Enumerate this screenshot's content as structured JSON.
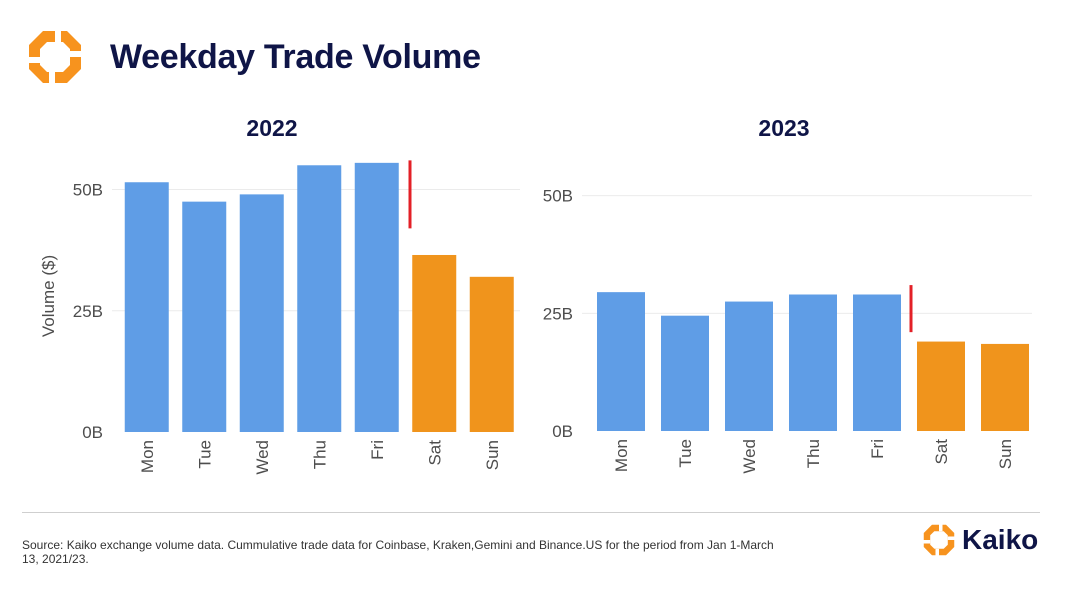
{
  "header": {
    "title": "Weekday Trade Volume",
    "logo_icon": "kaiko-octagon-logo-icon"
  },
  "colors": {
    "weekday": "#5f9de6",
    "weekend": "#f0941c",
    "marker": "#e32027",
    "title": "#0f1547",
    "accent": "#f7931e"
  },
  "chart_data": [
    {
      "type": "bar",
      "title": "2022",
      "ylabel": "Volume ($)",
      "xlabel": "",
      "categories": [
        "Mon",
        "Tue",
        "Wed",
        "Thu",
        "Fri",
        "Sat",
        "Sun"
      ],
      "values": [
        51.5,
        47.5,
        49,
        55,
        55.5,
        36.5,
        32
      ],
      "bar_colors": [
        "#5f9de6",
        "#5f9de6",
        "#5f9de6",
        "#5f9de6",
        "#5f9de6",
        "#f0941c",
        "#f0941c"
      ],
      "yticks": [
        0,
        25,
        50
      ],
      "ytick_labels": [
        "0B",
        "25B",
        "50B"
      ],
      "ylim": [
        0,
        56.5
      ],
      "marker": {
        "between": [
          "Fri",
          "Sat"
        ],
        "from": 42,
        "to": 56
      },
      "grid": true
    },
    {
      "type": "bar",
      "title": "2023",
      "ylabel": "",
      "xlabel": "",
      "categories": [
        "Mon",
        "Tue",
        "Wed",
        "Thu",
        "Fri",
        "Sat",
        "Sun"
      ],
      "values": [
        29.5,
        24.5,
        27.5,
        29,
        29,
        19,
        18.5
      ],
      "bar_colors": [
        "#5f9de6",
        "#5f9de6",
        "#5f9de6",
        "#5f9de6",
        "#5f9de6",
        "#f0941c",
        "#f0941c"
      ],
      "yticks": [
        0,
        25,
        50
      ],
      "ytick_labels": [
        "0B",
        "25B",
        "50B"
      ],
      "ylim": [
        0,
        58
      ],
      "marker": {
        "between": [
          "Fri",
          "Sat"
        ],
        "from": 21,
        "to": 31
      },
      "grid": true
    }
  ],
  "footer": {
    "source": "Source: Kaiko exchange volume data. Cummulative trade data for Coinbase, Kraken,Gemini and Binance.US for the period from Jan 1-March 13, 2021/23.",
    "brand_name": "Kaiko",
    "brand_icon": "kaiko-octagon-logo-icon"
  }
}
